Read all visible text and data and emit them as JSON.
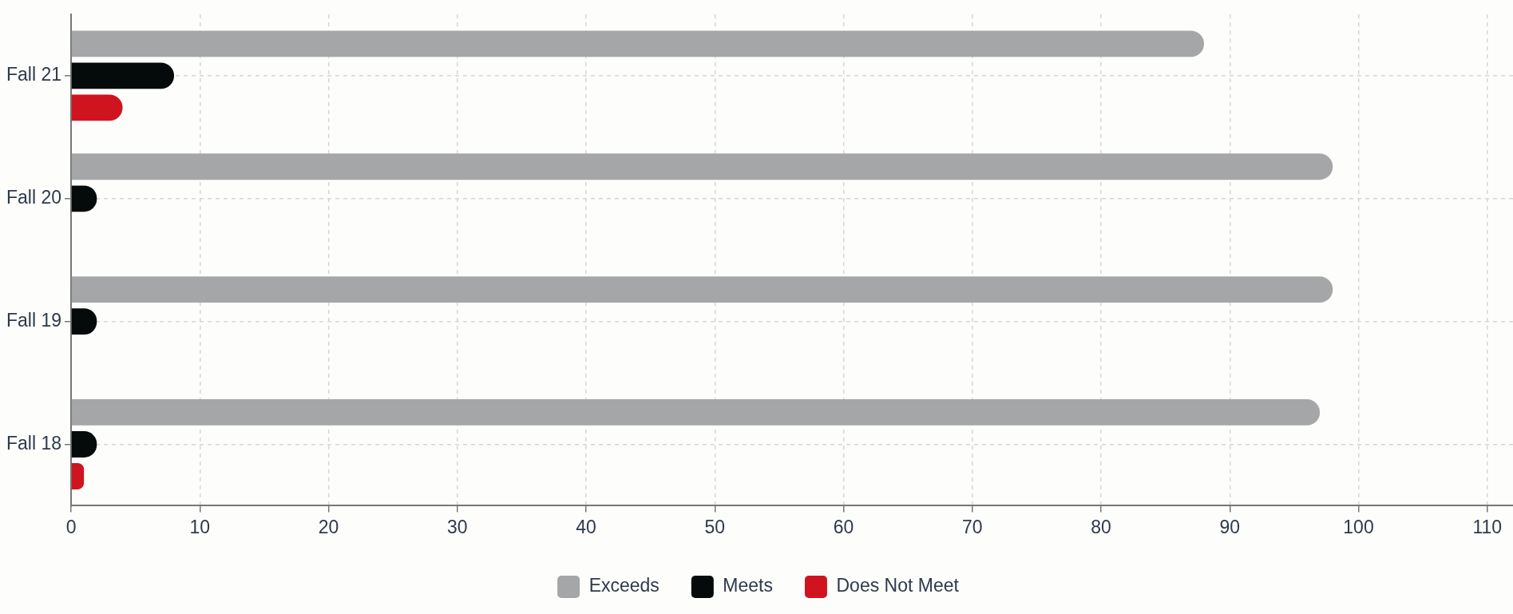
{
  "chart_data": {
    "type": "bar",
    "orientation": "horizontal",
    "categories": [
      "Fall 21",
      "Fall 20",
      "Fall 19",
      "Fall 18"
    ],
    "series": [
      {
        "name": "Exceeds",
        "color": "#a5a6a8",
        "values": [
          88,
          98,
          98,
          97
        ]
      },
      {
        "name": "Meets",
        "color": "#050a0a",
        "values": [
          8,
          2,
          2,
          2
        ]
      },
      {
        "name": "Does Not Meet",
        "color": "#d0141f",
        "values": [
          4,
          0,
          0,
          1
        ]
      }
    ],
    "xlim": [
      0,
      112
    ],
    "xticks": [
      0,
      10,
      20,
      30,
      40,
      50,
      60,
      70,
      80,
      90,
      100,
      110
    ],
    "grid": true,
    "legend": "bottom"
  }
}
